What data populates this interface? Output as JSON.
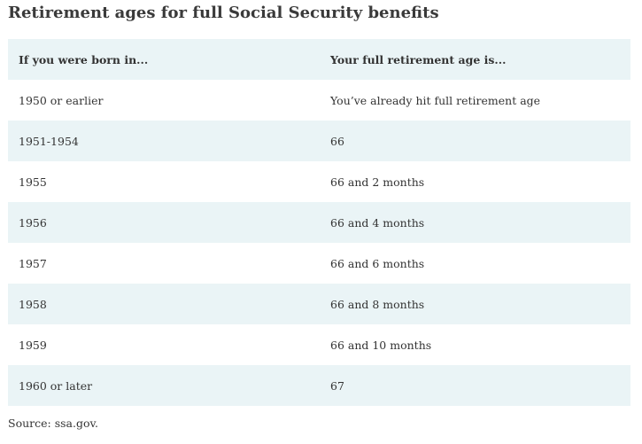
{
  "title": "Retirement ages for full Social Security benefits",
  "table": {
    "headers": [
      "If you were born in...",
      "Your full retirement age is..."
    ],
    "rows": [
      [
        "1950 or earlier",
        "You’ve already hit full retirement age"
      ],
      [
        "1951-1954",
        "66"
      ],
      [
        "1955",
        "66 and 2 months"
      ],
      [
        "1956",
        "66 and 4 months"
      ],
      [
        "1957",
        "66 and 6 months"
      ],
      [
        "1958",
        "66 and 8 months"
      ],
      [
        "1959",
        "66 and 10 months"
      ],
      [
        "1960 or later",
        "67"
      ]
    ]
  },
  "source": "Source: ssa.gov.",
  "colors": {
    "row_shade": "#eaf4f6",
    "text": "#333333"
  }
}
